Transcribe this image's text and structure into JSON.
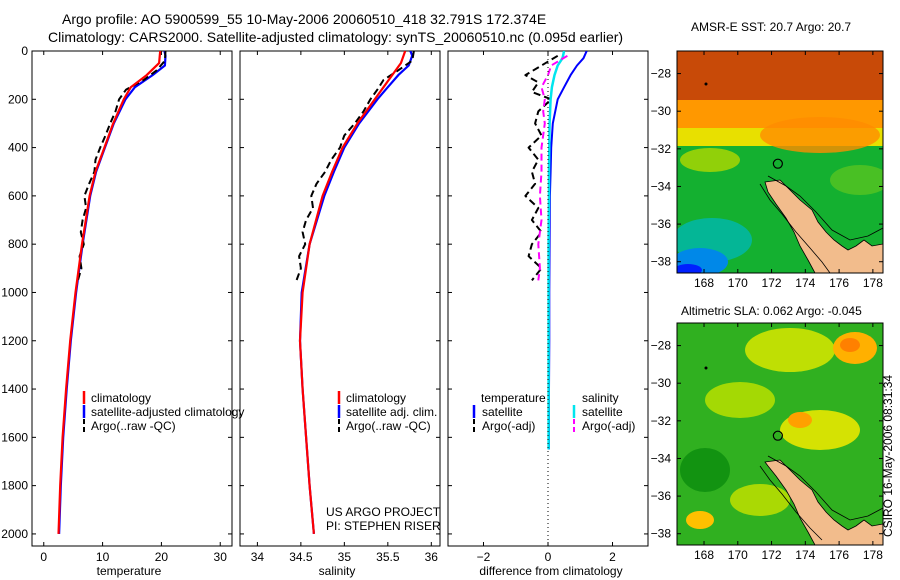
{
  "header": {
    "line1": "Argo profile: AO 5900599_55 10-May-2006 20060510_418 32.791S 172.374E",
    "line2": "Climatology: CARS2000. Satellite-adjusted climatology: synTS_20060510.nc (0.095d earlier)"
  },
  "footer_stamp": "CSIRO 16-May-2006 08:31:34",
  "project_note": [
    "US ARGO PROJECT",
    "PI: STEPHEN RISER"
  ],
  "colors": {
    "climatology": "#ff0000",
    "satellite": "#0000ff",
    "argo": "#000000",
    "salinity_satellite": "#00e5ee",
    "salinity_argo": "#ff00ff"
  },
  "chart_data": [
    {
      "type": "line",
      "panel": "temperature",
      "xlabel": "temperature",
      "xlim": [
        -2,
        32
      ],
      "xticks": [
        0,
        10,
        20,
        30
      ],
      "ylim": [
        2050,
        0
      ],
      "yticks": [
        0,
        200,
        400,
        600,
        800,
        1000,
        1200,
        1400,
        1600,
        1800,
        2000
      ],
      "legend": [
        "climatology",
        "satellite-adjusted climatology",
        "Argo(..raw -QC)"
      ],
      "series": [
        {
          "name": "climatology",
          "depth": [
            0,
            50,
            100,
            150,
            200,
            300,
            400,
            500,
            600,
            800,
            1000,
            1200,
            1400,
            1600,
            1800,
            2000
          ],
          "values": [
            19.8,
            19.6,
            17.5,
            14.8,
            13.6,
            11.8,
            10.3,
            8.8,
            7.8,
            6.5,
            5.4,
            4.5,
            3.8,
            3.2,
            2.8,
            2.5
          ]
        },
        {
          "name": "satellite",
          "depth": [
            0,
            20,
            60,
            100,
            150,
            200,
            300,
            400,
            500,
            600,
            800,
            1000,
            1200,
            1400,
            1600,
            1800,
            2000
          ],
          "values": [
            20.5,
            20.7,
            20.6,
            18.5,
            15.5,
            13.9,
            11.9,
            10.4,
            8.9,
            7.9,
            6.6,
            5.5,
            4.6,
            3.9,
            3.3,
            2.9,
            2.6
          ]
        },
        {
          "name": "argo",
          "depth": [
            0,
            40,
            80,
            120,
            160,
            200,
            250,
            300,
            350,
            400,
            450,
            500,
            550,
            600,
            650,
            700,
            750,
            800,
            850,
            900,
            950
          ],
          "values": [
            20.7,
            20.6,
            19.2,
            17.0,
            14.0,
            12.8,
            12.2,
            11.3,
            10.5,
            9.6,
            8.8,
            8.6,
            7.7,
            6.9,
            7.2,
            6.6,
            6.3,
            6.8,
            6.1,
            6.4,
            5.8
          ]
        }
      ]
    },
    {
      "type": "line",
      "panel": "salinity",
      "xlabel": "salinity",
      "xlim": [
        33.8,
        36.1
      ],
      "xticks": [
        34,
        34.5,
        35,
        35.5,
        36
      ],
      "ylim": [
        2050,
        0
      ],
      "legend": [
        "climatology",
        "satellite adj. clim.",
        "Argo(..raw -QC)"
      ],
      "series": [
        {
          "name": "climatology",
          "depth": [
            0,
            50,
            100,
            150,
            200,
            300,
            400,
            500,
            600,
            800,
            1000,
            1200,
            1400,
            1600,
            1800,
            2000
          ],
          "values": [
            35.7,
            35.65,
            35.55,
            35.45,
            35.35,
            35.15,
            34.98,
            34.86,
            34.75,
            34.6,
            34.52,
            34.49,
            34.52,
            34.56,
            34.6,
            34.65
          ]
        },
        {
          "name": "satellite",
          "depth": [
            0,
            20,
            60,
            100,
            150,
            200,
            300,
            400,
            500,
            600,
            800,
            1000,
            1200,
            1400,
            1600,
            1800,
            2000
          ],
          "values": [
            35.76,
            35.78,
            35.74,
            35.62,
            35.5,
            35.38,
            35.17,
            35.0,
            34.88,
            34.77,
            34.6,
            34.51,
            34.49,
            34.52,
            34.56,
            34.6,
            34.65
          ]
        },
        {
          "name": "argo",
          "depth": [
            0,
            40,
            80,
            120,
            160,
            200,
            250,
            300,
            350,
            400,
            450,
            500,
            550,
            600,
            650,
            700,
            750,
            800,
            850,
            900,
            950
          ],
          "values": [
            35.8,
            35.78,
            35.62,
            35.45,
            35.38,
            35.3,
            35.22,
            35.12,
            35.0,
            34.95,
            34.85,
            34.78,
            34.68,
            34.62,
            34.64,
            34.56,
            34.52,
            34.55,
            34.48,
            34.5,
            34.45
          ]
        }
      ]
    },
    {
      "type": "line",
      "panel": "difference",
      "xlabel": "difference from climatology",
      "xlim": [
        -3.1,
        3.1
      ],
      "xticks": [
        -2,
        0,
        2
      ],
      "ylim": [
        2050,
        0
      ],
      "legend_titles": [
        "temperature",
        "salinity"
      ],
      "legend": [
        "satellite",
        "Argo(-adj)",
        "satellite",
        "Argo(-adj)"
      ],
      "series": [
        {
          "name": "temperature satellite",
          "depth": [
            0,
            30,
            60,
            100,
            150,
            200,
            300,
            400,
            500,
            600,
            800,
            1000,
            1200,
            1400,
            1600,
            1650
          ],
          "values": [
            1.2,
            1.1,
            0.9,
            0.7,
            0.5,
            0.3,
            0.15,
            0.1,
            0.08,
            0.06,
            0.05,
            0.04,
            0.04,
            0.03,
            0.03,
            0.03
          ]
        },
        {
          "name": "temperature argo",
          "depth": [
            20,
            60,
            100,
            130,
            170,
            200,
            250,
            300,
            350,
            400,
            450,
            500,
            550,
            600,
            650,
            700,
            750,
            800,
            850,
            900,
            950
          ],
          "values": [
            0.3,
            -0.2,
            -0.7,
            -0.3,
            -0.5,
            0.1,
            -0.3,
            -0.4,
            -0.2,
            -0.6,
            -0.3,
            -0.5,
            -0.4,
            -0.7,
            -0.3,
            -0.5,
            -0.2,
            -0.5,
            -0.6,
            -0.2,
            -0.5
          ]
        },
        {
          "name": "salinity satellite",
          "depth": [
            0,
            30,
            60,
            100,
            150,
            200,
            300,
            400,
            500,
            600,
            800,
            1000,
            1200,
            1400,
            1600,
            1650
          ],
          "values": [
            0.5,
            0.45,
            0.3,
            0.2,
            0.12,
            0.08,
            0.05,
            0.04,
            0.03,
            0.03,
            0.02,
            0.02,
            0.02,
            0.02,
            0.02,
            0.02
          ]
        },
        {
          "name": "salinity argo",
          "depth": [
            20,
            60,
            100,
            150,
            200,
            250,
            300,
            400,
            500,
            600,
            700,
            800,
            900,
            950
          ],
          "values": [
            0.6,
            0.1,
            0.0,
            -0.2,
            -0.1,
            -0.15,
            -0.1,
            -0.2,
            -0.2,
            -0.25,
            -0.2,
            -0.3,
            -0.25,
            -0.3
          ]
        }
      ]
    },
    {
      "type": "heatmap",
      "panel": "sst_map",
      "title": "AMSR-E SST: 20.7 Argo: 20.7",
      "xlim": [
        166.4,
        178.6
      ],
      "ylim": [
        -38.6,
        -26.8
      ],
      "xticks": [
        168,
        170,
        172,
        174,
        176,
        178
      ],
      "yticks": [
        -28,
        -30,
        -32,
        -34,
        -36,
        -38
      ],
      "float_position": [
        172.374,
        -32.791
      ],
      "colormap": [
        "#0000ff",
        "#0080ff",
        "#00c0c0",
        "#00b000",
        "#80d000",
        "#f0e000",
        "#ff9000",
        "#e05000",
        "#b03000"
      ]
    },
    {
      "type": "heatmap",
      "panel": "sla_map",
      "title": "Altimetric SLA: 0.062 Argo: -0.045",
      "xlim": [
        166.4,
        178.6
      ],
      "ylim": [
        -38.6,
        -26.8
      ],
      "xticks": [
        168,
        170,
        172,
        174,
        176,
        178
      ],
      "yticks": [
        -28,
        -30,
        -32,
        -34,
        -36,
        -38
      ],
      "float_position": [
        172.374,
        -32.791
      ],
      "colormap": [
        "#00a000",
        "#40c000",
        "#a0e000",
        "#ffff00",
        "#ffc000",
        "#ff8000"
      ]
    }
  ]
}
